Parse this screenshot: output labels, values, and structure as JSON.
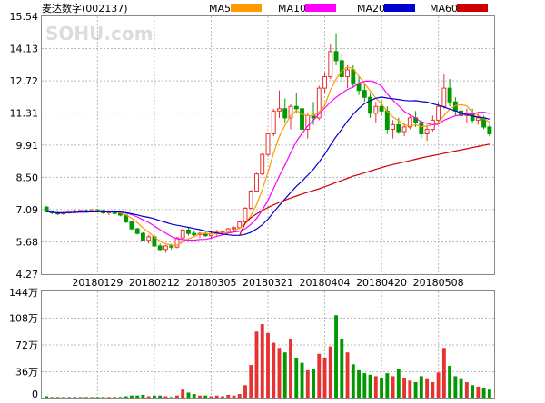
{
  "chart_data": {
    "type": "candlestick",
    "title": "麦达数字(002137)",
    "watermark": "SOHU.com",
    "price_ylim": [
      4.27,
      15.54
    ],
    "price_ticks": [
      "15.54",
      "14.13",
      "12.72",
      "11.31",
      "9.91",
      "8.50",
      "7.09",
      "5.68",
      "4.27"
    ],
    "date_ticks": [
      "20180129",
      "20180212",
      "20180305",
      "20180321",
      "20180404",
      "20180420",
      "20180508"
    ],
    "volume_ticks": [
      "144万",
      "108万",
      "72万",
      "36万",
      "0"
    ],
    "volume_ylim": [
      0,
      144
    ],
    "colors": {
      "up": "#e63232",
      "down": "#009900",
      "ma5": "#ff9900",
      "ma10": "#ff00ff",
      "ma20": "#0000cc",
      "ma60": "#cc0000",
      "grid": "#b8b8b8",
      "frame": "#888888"
    },
    "legend": [
      {
        "name": "MA5",
        "color": "#ff9900"
      },
      {
        "name": "MA10",
        "color": "#ff00ff"
      },
      {
        "name": "MA20",
        "color": "#0000cc"
      },
      {
        "name": "MA60",
        "color": "#cc0000"
      }
    ],
    "candles": [
      [
        7.2,
        7.25,
        6.98,
        7.0
      ],
      [
        7.0,
        7.05,
        6.88,
        6.95
      ],
      [
        6.95,
        7.0,
        6.85,
        6.9
      ],
      [
        6.9,
        7.0,
        6.86,
        6.95
      ],
      [
        6.95,
        7.05,
        6.9,
        7.02
      ],
      [
        7.02,
        7.08,
        6.95,
        7.0
      ],
      [
        7.0,
        7.08,
        6.96,
        7.05
      ],
      [
        7.05,
        7.1,
        6.98,
        7.0
      ],
      [
        7.0,
        7.12,
        6.97,
        7.08
      ],
      [
        7.08,
        7.12,
        7.0,
        7.05
      ],
      [
        7.05,
        7.1,
        6.9,
        6.95
      ],
      [
        6.95,
        7.05,
        6.85,
        7.0
      ],
      [
        7.0,
        7.05,
        6.88,
        6.92
      ],
      [
        6.92,
        6.95,
        6.8,
        6.85
      ],
      [
        6.85,
        6.9,
        6.5,
        6.55
      ],
      [
        6.55,
        6.6,
        6.2,
        6.25
      ],
      [
        6.25,
        6.3,
        6.0,
        6.05
      ],
      [
        6.05,
        6.1,
        5.7,
        5.75
      ],
      [
        5.75,
        6.0,
        5.6,
        5.9
      ],
      [
        5.9,
        5.95,
        5.45,
        5.5
      ],
      [
        5.5,
        5.6,
        5.3,
        5.35
      ],
      [
        5.35,
        5.55,
        5.2,
        5.5
      ],
      [
        5.5,
        5.6,
        5.35,
        5.45
      ],
      [
        5.45,
        5.9,
        5.4,
        5.85
      ],
      [
        5.85,
        6.3,
        5.8,
        6.2
      ],
      [
        6.2,
        6.3,
        5.95,
        6.05
      ],
      [
        6.05,
        6.15,
        5.9,
        6.0
      ],
      [
        6.0,
        6.1,
        5.85,
        6.05
      ],
      [
        6.05,
        6.15,
        5.9,
        5.95
      ],
      [
        5.95,
        6.1,
        5.85,
        6.05
      ],
      [
        6.05,
        6.2,
        5.95,
        6.1
      ],
      [
        6.1,
        6.2,
        6.0,
        6.15
      ],
      [
        6.15,
        6.3,
        6.05,
        6.25
      ],
      [
        6.25,
        6.35,
        6.15,
        6.3
      ],
      [
        6.3,
        6.6,
        6.25,
        6.55
      ],
      [
        6.55,
        7.2,
        6.5,
        7.15
      ],
      [
        7.15,
        7.95,
        7.1,
        7.9
      ],
      [
        7.9,
        8.7,
        7.85,
        8.65
      ],
      [
        8.65,
        9.55,
        8.6,
        9.5
      ],
      [
        9.5,
        10.45,
        9.4,
        10.4
      ],
      [
        10.4,
        11.5,
        10.3,
        11.4
      ],
      [
        11.4,
        12.3,
        11.1,
        11.5
      ],
      [
        11.5,
        11.95,
        10.9,
        11.1
      ],
      [
        11.1,
        11.7,
        10.6,
        11.6
      ],
      [
        11.6,
        12.2,
        11.3,
        11.5
      ],
      [
        11.5,
        11.8,
        10.4,
        10.6
      ],
      [
        10.6,
        11.3,
        10.2,
        11.2
      ],
      [
        11.2,
        11.8,
        10.8,
        11.1
      ],
      [
        11.1,
        12.5,
        11.0,
        12.4
      ],
      [
        12.4,
        13.1,
        12.2,
        12.9
      ],
      [
        12.9,
        14.3,
        12.8,
        14.0
      ],
      [
        14.0,
        14.8,
        13.4,
        13.6
      ],
      [
        13.6,
        13.9,
        12.7,
        12.9
      ],
      [
        12.9,
        13.4,
        12.4,
        13.2
      ],
      [
        13.2,
        13.4,
        12.4,
        12.6
      ],
      [
        12.6,
        12.9,
        12.1,
        12.3
      ],
      [
        12.3,
        12.6,
        11.8,
        12.0
      ],
      [
        12.0,
        12.2,
        11.1,
        11.3
      ],
      [
        11.3,
        11.8,
        10.9,
        11.6
      ],
      [
        11.6,
        11.9,
        11.2,
        11.4
      ],
      [
        11.4,
        11.6,
        10.4,
        10.6
      ],
      [
        10.6,
        11.0,
        10.2,
        10.8
      ],
      [
        10.8,
        11.1,
        10.4,
        10.5
      ],
      [
        10.5,
        10.9,
        10.3,
        10.7
      ],
      [
        10.7,
        11.2,
        10.6,
        11.1
      ],
      [
        11.1,
        11.4,
        10.7,
        10.9
      ],
      [
        10.9,
        11.0,
        10.2,
        10.4
      ],
      [
        10.4,
        10.8,
        10.1,
        10.6
      ],
      [
        10.6,
        11.2,
        10.5,
        11.0
      ],
      [
        11.0,
        11.8,
        10.9,
        11.6
      ],
      [
        11.6,
        13.0,
        11.5,
        12.4
      ],
      [
        12.4,
        12.8,
        11.6,
        11.8
      ],
      [
        11.8,
        12.0,
        11.2,
        11.4
      ],
      [
        11.4,
        11.7,
        11.1,
        11.2
      ],
      [
        11.2,
        11.5,
        10.9,
        11.3
      ],
      [
        11.3,
        11.5,
        10.9,
        11.0
      ],
      [
        11.0,
        11.3,
        10.8,
        11.1
      ],
      [
        11.1,
        11.2,
        10.6,
        10.7
      ],
      [
        10.7,
        10.8,
        10.3,
        10.4
      ]
    ],
    "volumes": [
      3,
      2,
      2,
      2,
      2,
      2,
      2,
      2,
      2,
      2,
      2,
      2,
      2,
      2,
      3,
      4,
      4,
      5,
      3,
      4,
      4,
      3,
      2,
      4,
      12,
      8,
      6,
      4,
      4,
      3,
      4,
      3,
      5,
      4,
      6,
      18,
      45,
      90,
      100,
      88,
      75,
      68,
      62,
      80,
      55,
      48,
      38,
      40,
      60,
      55,
      70,
      112,
      80,
      62,
      46,
      38,
      34,
      32,
      30,
      28,
      34,
      30,
      40,
      28,
      24,
      22,
      30,
      26,
      22,
      35,
      68,
      44,
      30,
      26,
      22,
      18,
      16,
      14,
      12
    ],
    "ma60": [
      [
        48,
        8.0
      ],
      [
        54,
        8.55
      ],
      [
        60,
        9.0
      ],
      [
        66,
        9.35
      ],
      [
        70,
        9.55
      ],
      [
        74,
        9.75
      ],
      [
        78,
        9.95
      ]
    ]
  }
}
